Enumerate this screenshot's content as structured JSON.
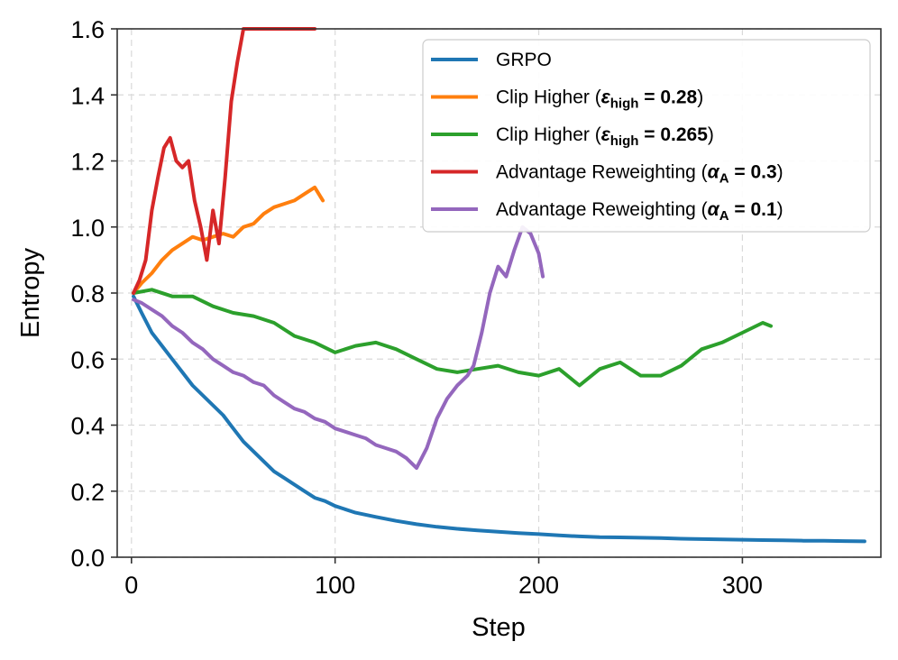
{
  "chart_data": {
    "type": "line",
    "title": "",
    "xlabel": "Step",
    "ylabel": "Entropy",
    "xlim": [
      -7,
      368
    ],
    "ylim": [
      0.0,
      1.6
    ],
    "xticks": [
      0,
      100,
      200,
      300
    ],
    "yticks": [
      0.0,
      0.2,
      0.4,
      0.6,
      0.8,
      1.0,
      1.2,
      1.4,
      1.6
    ],
    "xtick_labels": [
      "0",
      "100",
      "200",
      "300"
    ],
    "ytick_labels": [
      "0.0",
      "0.2",
      "0.4",
      "0.6",
      "0.8",
      "1.0",
      "1.2",
      "1.4",
      "1.6"
    ],
    "grid": true,
    "legend_position": "top-right",
    "series": [
      {
        "name": "GRPO",
        "legend_prefix": "GRPO",
        "legend_symbol": "",
        "legend_subscript": "",
        "legend_value": "",
        "legend_suffix": "",
        "color": "#1f77b4",
        "x": [
          1,
          5,
          10,
          15,
          20,
          25,
          30,
          35,
          40,
          45,
          50,
          55,
          60,
          65,
          70,
          75,
          80,
          85,
          90,
          95,
          100,
          110,
          120,
          130,
          140,
          150,
          160,
          170,
          180,
          190,
          200,
          210,
          220,
          230,
          240,
          250,
          260,
          270,
          280,
          290,
          300,
          310,
          320,
          330,
          340,
          350,
          360
        ],
        "y": [
          0.79,
          0.74,
          0.68,
          0.64,
          0.6,
          0.56,
          0.52,
          0.49,
          0.46,
          0.43,
          0.39,
          0.35,
          0.32,
          0.29,
          0.26,
          0.24,
          0.22,
          0.2,
          0.18,
          0.17,
          0.155,
          0.135,
          0.122,
          0.11,
          0.1,
          0.092,
          0.086,
          0.081,
          0.077,
          0.073,
          0.07,
          0.066,
          0.063,
          0.061,
          0.06,
          0.059,
          0.058,
          0.056,
          0.055,
          0.054,
          0.053,
          0.052,
          0.051,
          0.05,
          0.05,
          0.049,
          0.048
        ]
      },
      {
        "name": "Clip Higher (ε_high = 0.28)",
        "legend_prefix": "Clip Higher (",
        "legend_symbol": "ε",
        "legend_subscript": "high",
        "legend_value": " = 0.28",
        "legend_suffix": ")",
        "color": "#ff7f0e",
        "x": [
          1,
          5,
          10,
          15,
          20,
          25,
          30,
          35,
          40,
          45,
          50,
          55,
          60,
          65,
          70,
          75,
          80,
          85,
          90,
          94
        ],
        "y": [
          0.8,
          0.83,
          0.86,
          0.9,
          0.93,
          0.95,
          0.97,
          0.96,
          0.97,
          0.98,
          0.97,
          1.0,
          1.01,
          1.04,
          1.06,
          1.07,
          1.08,
          1.1,
          1.12,
          1.08
        ]
      },
      {
        "name": "Clip Higher (ε_high = 0.265)",
        "legend_prefix": "Clip Higher (",
        "legend_symbol": "ε",
        "legend_subscript": "high",
        "legend_value": " = 0.265",
        "legend_suffix": ")",
        "color": "#2ca02c",
        "x": [
          1,
          10,
          20,
          30,
          40,
          50,
          60,
          70,
          80,
          90,
          100,
          110,
          120,
          130,
          140,
          150,
          160,
          170,
          180,
          190,
          200,
          210,
          220,
          230,
          240,
          250,
          260,
          270,
          280,
          290,
          300,
          310,
          314
        ],
        "y": [
          0.8,
          0.81,
          0.79,
          0.79,
          0.76,
          0.74,
          0.73,
          0.71,
          0.67,
          0.65,
          0.62,
          0.64,
          0.65,
          0.63,
          0.6,
          0.57,
          0.56,
          0.57,
          0.58,
          0.56,
          0.55,
          0.57,
          0.52,
          0.57,
          0.59,
          0.55,
          0.55,
          0.58,
          0.63,
          0.65,
          0.68,
          0.71,
          0.7
        ]
      },
      {
        "name": "Advantage Reweighting (α_A = 0.3)",
        "legend_prefix": "Advantage Reweighting (",
        "legend_symbol": "α",
        "legend_subscript": "A",
        "legend_value": " = 0.3",
        "legend_suffix": ")",
        "color": "#d62728",
        "x": [
          1,
          4,
          7,
          10,
          13,
          16,
          19,
          22,
          25,
          28,
          31,
          34,
          37,
          40,
          43,
          46,
          49,
          52,
          55,
          60,
          70,
          80,
          90
        ],
        "y": [
          0.8,
          0.84,
          0.9,
          1.05,
          1.15,
          1.24,
          1.27,
          1.2,
          1.18,
          1.2,
          1.08,
          1.0,
          0.9,
          1.05,
          0.95,
          1.15,
          1.38,
          1.5,
          1.6,
          1.6,
          1.6,
          1.6,
          1.6
        ]
      },
      {
        "name": "Advantage Reweighting (α_A = 0.1)",
        "legend_prefix": "Advantage Reweighting (",
        "legend_symbol": "α",
        "legend_subscript": "A",
        "legend_value": " = 0.1",
        "legend_suffix": ")",
        "color": "#9467bd",
        "x": [
          1,
          5,
          10,
          15,
          20,
          25,
          30,
          35,
          40,
          45,
          50,
          55,
          60,
          65,
          70,
          75,
          80,
          85,
          90,
          95,
          100,
          105,
          110,
          115,
          120,
          125,
          130,
          135,
          140,
          145,
          150,
          155,
          160,
          165,
          168,
          172,
          176,
          180,
          184,
          188,
          192,
          196,
          200,
          202
        ],
        "y": [
          0.78,
          0.77,
          0.75,
          0.73,
          0.7,
          0.68,
          0.65,
          0.63,
          0.6,
          0.58,
          0.56,
          0.55,
          0.53,
          0.52,
          0.49,
          0.47,
          0.45,
          0.44,
          0.42,
          0.41,
          0.39,
          0.38,
          0.37,
          0.36,
          0.34,
          0.33,
          0.32,
          0.3,
          0.27,
          0.33,
          0.42,
          0.48,
          0.52,
          0.55,
          0.58,
          0.68,
          0.8,
          0.88,
          0.85,
          0.93,
          1.0,
          0.98,
          0.92,
          0.85
        ]
      }
    ]
  }
}
